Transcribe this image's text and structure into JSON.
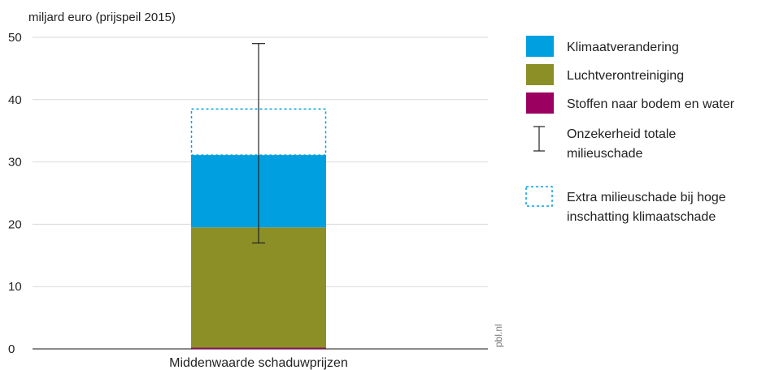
{
  "chart_data": {
    "type": "bar",
    "stacked": true,
    "ylabel": "miljard euro (prijspeil 2015)",
    "ylim": [
      0,
      50
    ],
    "yticks": [
      0,
      10,
      20,
      30,
      40,
      50
    ],
    "grid": true,
    "categories": [
      "Middenwaarde schaduwprijzen"
    ],
    "series": [
      {
        "name": "Stoffen naar bodem en water",
        "values": [
          0.2
        ],
        "color": "#9b0060"
      },
      {
        "name": "Luchtverontreiniging",
        "values": [
          19.3
        ],
        "color": "#8c8f26"
      },
      {
        "name": "Klimaatverandering",
        "values": [
          11.6
        ],
        "color": "#00a0e0"
      }
    ],
    "extra": {
      "name": "Extra milieuschade bij hoge inschatting klimaatschade",
      "from": 31.1,
      "to": 38.5,
      "color": "#00a0e0"
    },
    "error_bar": {
      "name": "Onzekerheid totale milieuschade",
      "low": 17,
      "high": 49
    },
    "legend_position": "right",
    "legend": [
      {
        "label": "Klimaatverandering",
        "kind": "swatch",
        "color": "#00a0e0"
      },
      {
        "label": "Luchtverontreiniging",
        "kind": "swatch",
        "color": "#8c8f26"
      },
      {
        "label": "Stoffen naar bodem en water",
        "kind": "swatch",
        "color": "#9b0060"
      },
      {
        "label": "Onzekerheid totale milieuschade",
        "kind": "errorbar",
        "lines": [
          "Onzekerheid totale",
          "milieuschade"
        ]
      },
      {
        "label": "Extra milieuschade bij hoge inschatting klimaatschade",
        "kind": "dashed",
        "lines": [
          "Extra milieuschade bij hoge",
          "inschatting klimaatschade"
        ]
      }
    ],
    "source": "pbl.nl"
  }
}
